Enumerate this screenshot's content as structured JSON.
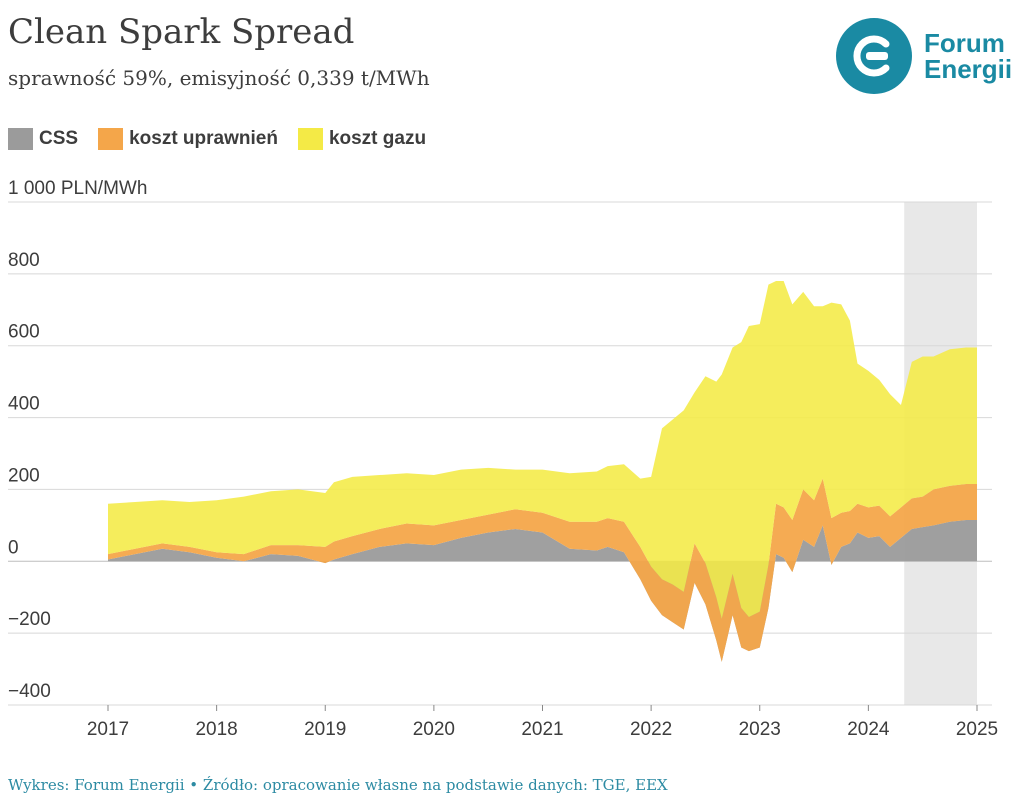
{
  "header": {
    "title": "Clean Spark Spread",
    "subtitle": "sprawność 59%, emisyjność 0,339 t/MWh"
  },
  "logo": {
    "line1": "Forum",
    "line2": "Energii",
    "icon": "forum-energii-logo-icon",
    "color": "#1a8aa3"
  },
  "legend": [
    {
      "label": "CSS",
      "color": "#9b9b9b"
    },
    {
      "label": "koszt uprawnień",
      "color": "#f4a64a"
    },
    {
      "label": "koszt gazu",
      "color": "#f4ea46"
    }
  ],
  "footer": "Wykres: Forum Energii • Źródło: opracowanie własne na podstawie danych: TGE, EEX",
  "chart_data": {
    "type": "area",
    "title": "Clean Spark Spread",
    "subtitle": "sprawność 59%, emisyjność 0,339 t/MWh",
    "ylabel": "1 000 PLN/MWh",
    "ylim": [
      -400,
      1000
    ],
    "yticks": [
      -400,
      -200,
      0,
      200,
      400,
      600,
      800
    ],
    "ytick_labels": [
      "−400",
      "−200",
      "0",
      "200",
      "400",
      "600",
      "800"
    ],
    "xlim": [
      2017,
      2025
    ],
    "xticks": [
      2017,
      2018,
      2019,
      2020,
      2021,
      2022,
      2023,
      2024,
      2025
    ],
    "grid": true,
    "legend_position": "top-left",
    "shaded_region": {
      "from": 2024.33,
      "to": 2025,
      "color": "#e8e8e8"
    },
    "x": [
      2017.0,
      2017.25,
      2017.5,
      2017.75,
      2018.0,
      2018.25,
      2018.5,
      2018.75,
      2019.0,
      2019.08,
      2019.25,
      2019.5,
      2019.75,
      2020.0,
      2020.25,
      2020.5,
      2020.75,
      2021.0,
      2021.25,
      2021.5,
      2021.6,
      2021.75,
      2021.9,
      2022.0,
      2022.1,
      2022.2,
      2022.3,
      2022.4,
      2022.5,
      2022.6,
      2022.65,
      2022.75,
      2022.83,
      2022.9,
      2023.0,
      2023.08,
      2023.15,
      2023.22,
      2023.3,
      2023.4,
      2023.5,
      2023.58,
      2023.66,
      2023.75,
      2023.83,
      2023.9,
      2024.0,
      2024.1,
      2024.2,
      2024.3,
      2024.4,
      2024.5,
      2024.6,
      2024.75,
      2024.9,
      2025.0
    ],
    "series": [
      {
        "name": "CSS",
        "color": "#9b9b9b",
        "values": [
          5,
          20,
          35,
          25,
          10,
          0,
          20,
          15,
          -5,
          5,
          20,
          40,
          50,
          45,
          65,
          80,
          90,
          80,
          35,
          30,
          40,
          25,
          -50,
          -110,
          -150,
          -170,
          -190,
          -60,
          -120,
          -220,
          -280,
          -150,
          -240,
          -250,
          -240,
          -130,
          20,
          10,
          -30,
          60,
          40,
          100,
          -10,
          40,
          50,
          80,
          65,
          70,
          40,
          65,
          90,
          95,
          100,
          110,
          115,
          115
        ]
      },
      {
        "name": "koszt uprawnień",
        "color": "#f4a64a",
        "values": [
          15,
          15,
          15,
          15,
          15,
          20,
          25,
          30,
          45,
          50,
          50,
          50,
          55,
          55,
          50,
          50,
          55,
          55,
          75,
          80,
          80,
          85,
          90,
          95,
          100,
          105,
          105,
          110,
          115,
          120,
          120,
          115,
          110,
          95,
          100,
          120,
          140,
          140,
          145,
          140,
          130,
          130,
          130,
          95,
          90,
          80,
          85,
          85,
          85,
          85,
          85,
          85,
          100,
          100,
          100,
          100
        ]
      },
      {
        "name": "koszt gazu",
        "color": "#f4ea46",
        "values": [
          140,
          130,
          120,
          125,
          145,
          160,
          150,
          155,
          150,
          165,
          165,
          150,
          140,
          140,
          140,
          130,
          110,
          120,
          135,
          140,
          145,
          160,
          190,
          250,
          420,
          460,
          505,
          420,
          520,
          600,
          680,
          630,
          740,
          810,
          800,
          780,
          620,
          630,
          600,
          550,
          540,
          480,
          600,
          580,
          530,
          390,
          380,
          350,
          340,
          285,
          380,
          390,
          370,
          380,
          380,
          380
        ]
      }
    ]
  }
}
